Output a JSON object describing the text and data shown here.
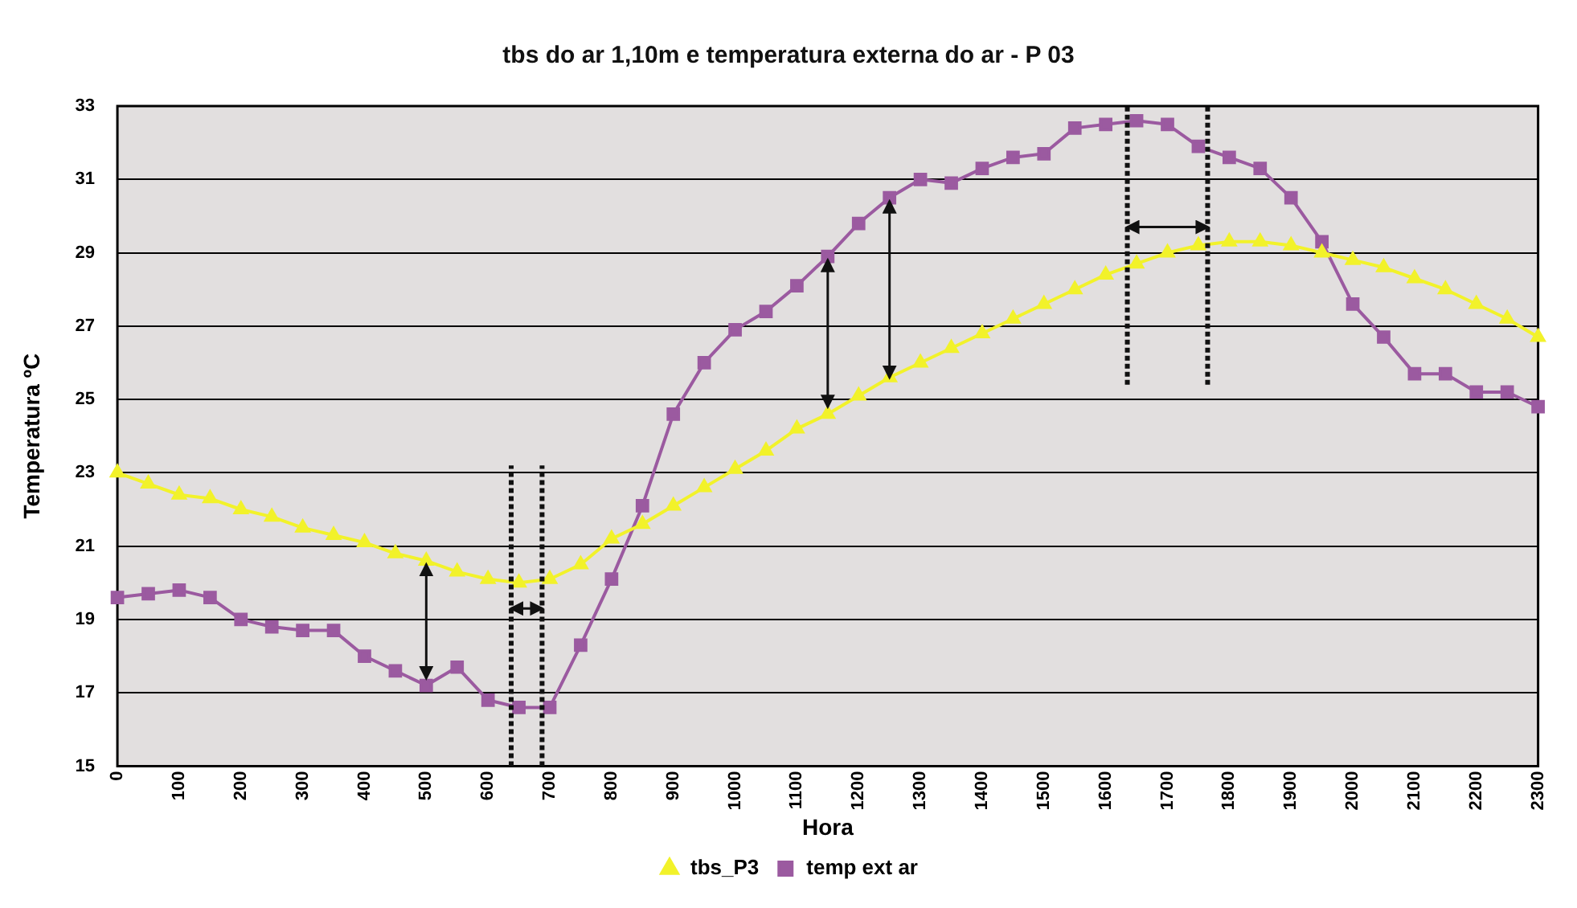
{
  "chart_data": {
    "type": "line",
    "title": "tbs do ar 1,10m e temperatura externa do ar - P 03",
    "xlabel": "Hora",
    "ylabel": "Temperatura ºC",
    "categories": [
      "0",
      null,
      "100",
      null,
      "200",
      null,
      "300",
      null,
      "400",
      null,
      "500",
      null,
      "600",
      null,
      "700",
      null,
      "800",
      null,
      "900",
      null,
      "1000",
      null,
      "1100",
      null,
      "1200",
      null,
      "1300",
      null,
      "1400",
      null,
      "1500",
      null,
      "1600",
      null,
      "1700",
      null,
      "1800",
      null,
      "1900",
      null,
      "2000",
      null,
      "2100",
      null,
      "2200",
      null,
      "2300"
    ],
    "series": [
      {
        "name": "tbs_P3",
        "color": "#f2f22a",
        "marker": "triangle",
        "values": [
          23.0,
          22.7,
          22.4,
          22.3,
          22.0,
          21.8,
          21.5,
          21.3,
          21.1,
          20.8,
          20.6,
          20.3,
          20.1,
          20.0,
          20.1,
          20.5,
          21.2,
          21.6,
          22.1,
          22.6,
          23.1,
          23.6,
          24.2,
          24.6,
          25.1,
          25.6,
          26.0,
          26.4,
          26.8,
          27.2,
          27.6,
          28.0,
          28.4,
          28.7,
          29.0,
          29.2,
          29.3,
          29.3,
          29.2,
          29.0,
          28.8,
          28.6,
          28.3,
          28.0,
          27.6,
          27.2,
          26.7
        ]
      },
      {
        "name": "temp ext ar",
        "color": "#9b5aa0",
        "marker": "square",
        "values": [
          19.6,
          19.7,
          19.8,
          19.6,
          19.0,
          18.8,
          18.7,
          18.7,
          18.0,
          17.6,
          17.2,
          17.7,
          16.8,
          16.6,
          16.6,
          18.3,
          20.1,
          22.1,
          24.6,
          26.0,
          26.9,
          27.4,
          28.1,
          28.9,
          29.8,
          30.5,
          31.0,
          30.9,
          31.3,
          31.6,
          31.7,
          32.4,
          32.5,
          32.6,
          32.5,
          31.9,
          31.6,
          31.3,
          30.5,
          29.3,
          27.6,
          26.7,
          25.7,
          25.7,
          25.2,
          25.2,
          24.8
        ]
      }
    ],
    "ylim": [
      15,
      33
    ],
    "yticks": [
      15,
      17,
      19,
      21,
      23,
      25,
      27,
      29,
      31,
      33
    ],
    "grid": "y",
    "legend": "bottom",
    "line_style": "solid"
  }
}
